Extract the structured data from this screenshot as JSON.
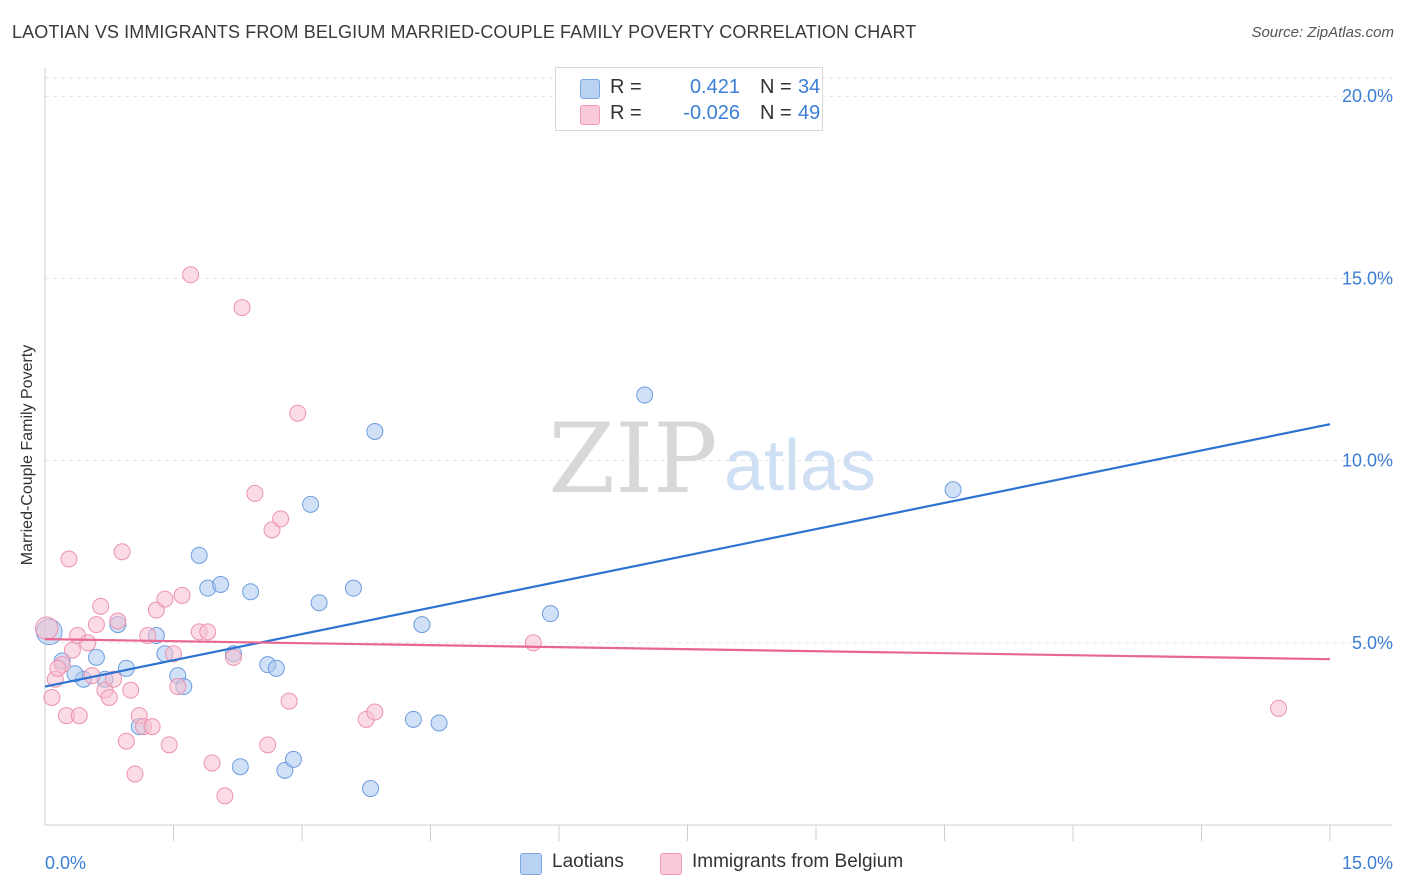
{
  "header": {
    "title": "LAOTIAN VS IMMIGRANTS FROM BELGIUM MARRIED-COUPLE FAMILY POVERTY CORRELATION CHART",
    "source": "Source: ZipAtlas.com"
  },
  "stats": {
    "rows": [
      {
        "r_label": "R =",
        "r_value": "0.421",
        "n_label": "N =",
        "n_value": "34"
      },
      {
        "r_label": "R =",
        "r_value": "-0.026",
        "n_label": "N =",
        "n_value": "49"
      }
    ]
  },
  "legend": {
    "items": [
      {
        "label": "Laotians"
      },
      {
        "label": "Immigrants from Belgium"
      }
    ]
  },
  "watermark": {
    "zip": "ZIP",
    "atlas": "atlas"
  },
  "colors": {
    "blue_fill": "#a9c7ef",
    "blue_stroke": "#6e9de0",
    "blue_line": "#2c73d2",
    "pink_fill": "#f7bfd0",
    "pink_stroke": "#ec92b1",
    "pink_line": "#e8668f",
    "axis_text": "#3b7ed6"
  },
  "chart_data": {
    "type": "scatter",
    "title": "LAOTIAN VS IMMIGRANTS FROM BELGIUM MARRIED-COUPLE FAMILY POVERTY CORRELATION CHART",
    "xlabel": "",
    "ylabel": "Married-Couple Family Poverty",
    "xlim": [
      0,
      15
    ],
    "ylim": [
      0,
      20.5
    ],
    "x_tick_labels": [
      {
        "value": 0,
        "label": "0.0%"
      },
      {
        "value": 15,
        "label": "15.0%"
      }
    ],
    "y_tick_labels": [
      {
        "value": 5,
        "label": "5.0%"
      },
      {
        "value": 10,
        "label": "10.0%"
      },
      {
        "value": 15,
        "label": "15.0%"
      },
      {
        "value": 20,
        "label": "20.0%"
      }
    ],
    "x_minor_ticks": [
      1.5,
      3,
      4.5,
      6,
      7.5,
      9,
      10.5,
      12,
      13.5,
      15
    ],
    "grid": true,
    "legend_position": "bottom-center",
    "series": [
      {
        "name": "Laotians",
        "r": 0.421,
        "n": 34,
        "trend": [
          [
            0,
            3.8
          ],
          [
            15,
            11.0
          ]
        ],
        "points": [
          [
            0.05,
            5.3,
            1.6
          ],
          [
            0.2,
            4.5,
            1
          ],
          [
            0.45,
            4.0,
            1
          ],
          [
            0.6,
            4.6,
            1
          ],
          [
            0.7,
            4.0,
            1
          ],
          [
            0.85,
            5.5,
            1
          ],
          [
            0.95,
            4.3,
            1
          ],
          [
            1.1,
            2.7,
            1
          ],
          [
            1.3,
            5.2,
            1
          ],
          [
            1.4,
            4.7,
            1
          ],
          [
            1.55,
            4.1,
            1
          ],
          [
            1.62,
            3.8,
            1
          ],
          [
            1.8,
            7.4,
            1
          ],
          [
            1.9,
            6.5,
            1
          ],
          [
            2.05,
            6.6,
            1
          ],
          [
            2.2,
            4.7,
            1
          ],
          [
            2.28,
            1.6,
            1
          ],
          [
            2.4,
            6.4,
            1
          ],
          [
            2.6,
            4.4,
            1
          ],
          [
            2.7,
            4.3,
            1
          ],
          [
            2.8,
            1.5,
            1
          ],
          [
            2.9,
            1.8,
            1
          ],
          [
            3.1,
            8.8,
            1
          ],
          [
            3.2,
            6.1,
            1
          ],
          [
            3.6,
            6.5,
            1
          ],
          [
            3.8,
            1.0,
            1
          ],
          [
            3.85,
            10.8,
            1
          ],
          [
            4.3,
            2.9,
            1
          ],
          [
            4.4,
            5.5,
            1
          ],
          [
            4.6,
            2.8,
            1
          ],
          [
            5.9,
            5.8,
            1
          ],
          [
            7.0,
            11.8,
            1
          ],
          [
            10.6,
            9.2,
            1
          ],
          [
            0.35,
            4.15,
            1
          ]
        ]
      },
      {
        "name": "Immigrants from Belgium",
        "r": -0.026,
        "n": 49,
        "trend": [
          [
            0,
            5.1
          ],
          [
            15,
            4.55
          ]
        ],
        "points": [
          [
            0.02,
            5.4,
            1.4
          ],
          [
            0.08,
            3.5,
            1
          ],
          [
            0.12,
            4.0,
            1
          ],
          [
            0.2,
            4.4,
            1
          ],
          [
            0.25,
            3.0,
            1
          ],
          [
            0.28,
            7.3,
            1
          ],
          [
            0.32,
            4.8,
            1
          ],
          [
            0.38,
            5.2,
            1
          ],
          [
            0.4,
            3.0,
            1
          ],
          [
            0.5,
            5.0,
            1
          ],
          [
            0.55,
            4.1,
            1
          ],
          [
            0.6,
            5.5,
            1
          ],
          [
            0.65,
            6.0,
            1
          ],
          [
            0.7,
            3.7,
            1
          ],
          [
            0.75,
            3.5,
            1
          ],
          [
            0.8,
            4.0,
            1
          ],
          [
            0.85,
            5.6,
            1
          ],
          [
            0.9,
            7.5,
            1
          ],
          [
            0.95,
            2.3,
            1
          ],
          [
            1.0,
            3.7,
            1
          ],
          [
            1.05,
            1.4,
            1
          ],
          [
            1.1,
            3.0,
            1
          ],
          [
            1.15,
            2.7,
            1
          ],
          [
            1.2,
            5.2,
            1
          ],
          [
            1.25,
            2.7,
            1
          ],
          [
            1.3,
            5.9,
            1
          ],
          [
            1.4,
            6.2,
            1
          ],
          [
            1.45,
            2.2,
            1
          ],
          [
            1.5,
            4.7,
            1
          ],
          [
            1.55,
            3.8,
            1
          ],
          [
            1.6,
            6.3,
            1
          ],
          [
            1.7,
            15.1,
            1
          ],
          [
            1.8,
            5.3,
            1
          ],
          [
            1.9,
            5.3,
            1
          ],
          [
            1.95,
            1.7,
            1
          ],
          [
            2.1,
            0.8,
            1
          ],
          [
            2.2,
            4.6,
            1
          ],
          [
            2.3,
            14.2,
            1
          ],
          [
            2.45,
            9.1,
            1
          ],
          [
            2.6,
            2.2,
            1
          ],
          [
            2.65,
            8.1,
            1
          ],
          [
            2.75,
            8.4,
            1
          ],
          [
            2.85,
            3.4,
            1
          ],
          [
            2.95,
            11.3,
            1
          ],
          [
            3.75,
            2.9,
            1
          ],
          [
            3.85,
            3.1,
            1
          ],
          [
            5.7,
            5.0,
            1
          ],
          [
            14.4,
            3.2,
            1
          ],
          [
            0.15,
            4.3,
            1
          ]
        ]
      }
    ]
  }
}
